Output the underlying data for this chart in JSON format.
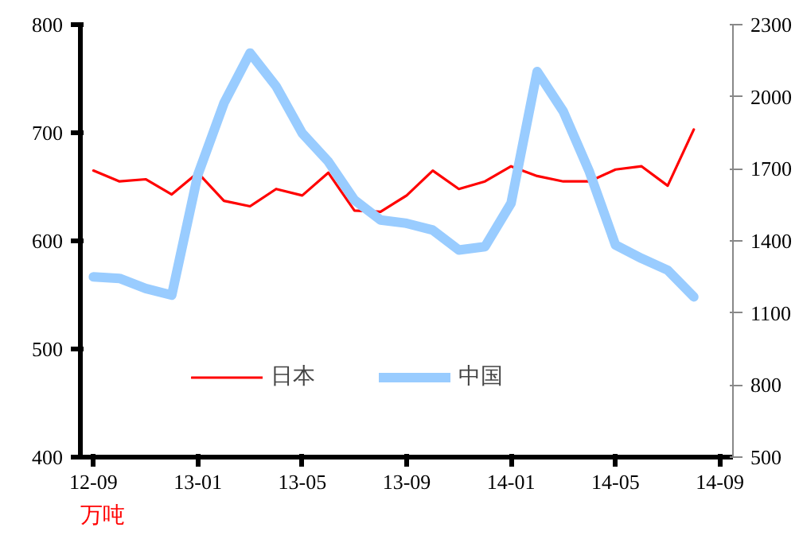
{
  "chart_data": {
    "type": "line",
    "categories": [
      "12-09",
      null,
      null,
      null,
      "13-01",
      null,
      null,
      null,
      "13-05",
      null,
      null,
      null,
      "13-09",
      null,
      null,
      null,
      "14-01",
      null,
      null,
      null,
      "14-05",
      null,
      null,
      null,
      "14-09"
    ],
    "series": [
      {
        "name": "日本",
        "color": "#ff0000",
        "values": [
          665,
          655,
          657,
          643,
          663,
          637,
          632,
          648,
          642,
          663,
          628,
          627,
          642,
          665,
          648,
          655,
          669,
          660,
          655,
          655,
          666,
          669,
          651,
          703,
          null
        ]
      },
      {
        "name": "中国",
        "color": "#99ccff",
        "axis": "y2",
        "values": [
          1250,
          1244,
          1202,
          1174,
          1675,
          1973,
          2182,
          2043,
          1848,
          1730,
          1570,
          1487,
          1473,
          1445,
          1362,
          1376,
          1557,
          2105,
          1939,
          1688,
          1383,
          1327,
          1278,
          1167,
          null
        ]
      }
    ],
    "ylim": [
      400,
      800
    ],
    "yticks": [
      400,
      500,
      600,
      700,
      800
    ],
    "y2lim": [
      500,
      2300
    ],
    "y2ticks": [
      500,
      800,
      1100,
      1400,
      1700,
      2000,
      2300
    ],
    "annotations": [
      "万吨"
    ],
    "legend": "bottom",
    "grid": false
  }
}
